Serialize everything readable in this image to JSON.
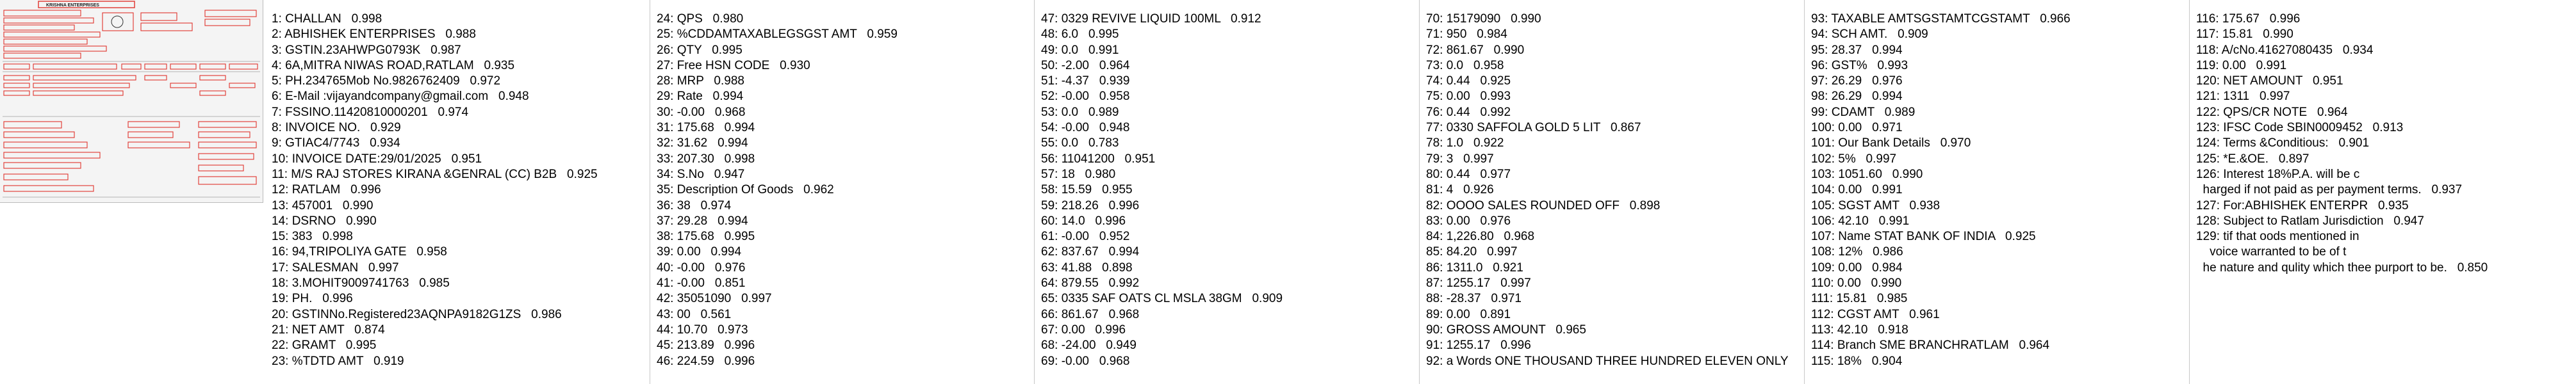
{
  "thumbnail": {
    "title": "KRISHNA ENTERPRISES",
    "colors": {
      "box": "#e0322c",
      "ink": "#1a1a1a",
      "paper": "#f7f7f7"
    }
  },
  "columns": [
    {
      "lines": [
        "1: CHALLAN   0.998",
        "2: ABHISHEK ENTERPRISES   0.988",
        "3: GSTIN.23AHWPG0793K   0.987",
        "4: 6A,MITRA NIWAS ROAD,RATLAM   0.935",
        "5: PH.234765Mob No.9826762409   0.972",
        "6: E-Mail :vijayandcompany@gmail.com   0.948",
        "7: FSSINO.11420810000201   0.974",
        "8: INVOICE NO.   0.929",
        "9: GTIAC4/7743   0.934",
        "10: INVOICE DATE:29/01/2025   0.951",
        "11: M/S RAJ STORES KIRANA &GENRAL (CC) B2B   0.925",
        "12: RATLAM   0.996",
        "13: 457001   0.990",
        "14: DSRNO   0.990",
        "15: 383   0.998",
        "16: 94,TRIPOLIYA GATE   0.958",
        "17: SALESMAN   0.997",
        "18: 3.MOHIT9009741763   0.985",
        "19: PH.   0.996",
        "20: GSTINNo.Registered23AQNPA9182G1ZS   0.986",
        "21: NET AMT   0.874",
        "22: GRAMT   0.995",
        "23: %TDTD AMT   0.919"
      ]
    },
    {
      "lines": [
        "24: QPS   0.980",
        "25: %CDDAMTAXABLEGSGST AMT   0.959",
        "26: QTY   0.995",
        "27: Free HSN CODE   0.930",
        "28: MRP   0.988",
        "29: Rate   0.994",
        "30: -0.00   0.968",
        "31: 175.68   0.994",
        "32: 31.62   0.994",
        "33: 207.30   0.998",
        "34: S.No   0.947",
        "35: Description Of Goods   0.962",
        "36: 38   0.974",
        "37: 29.28   0.994",
        "38: 175.68   0.995",
        "39: 0.00   0.994",
        "40: -0.00   0.976",
        "41: -0.00   0.851",
        "42: 35051090   0.997",
        "43: 00   0.561",
        "44: 10.70   0.973",
        "45: 213.89   0.996",
        "46: 224.59   0.996"
      ]
    },
    {
      "lines": [
        "47: 0329 REVIVE LIQUID 100ML   0.912",
        "48: 6.0   0.995",
        "49: 0.0   0.991",
        "50: -2.00   0.964",
        "51: -4.37   0.939",
        "52: -0.00   0.958",
        "53: 0.0   0.989",
        "54: -0.00   0.948",
        "55: 0.0   0.783",
        "56: 11041200   0.951",
        "57: 18   0.980",
        "58: 15.59   0.955",
        "59: 218.26   0.996",
        "60: 14.0   0.996",
        "61: -0.00   0.952",
        "62: 837.67   0.994",
        "63: 41.88   0.898",
        "64: 879.55   0.992",
        "65: 0335 SAF OATS CL MSLA 38GM   0.909",
        "66: 861.67   0.968",
        "67: 0.00   0.996",
        "68: -24.00   0.949",
        "69: -0.00   0.968"
      ]
    },
    {
      "lines": [
        "70: 15179090   0.990",
        "71: 950   0.984",
        "72: 861.67   0.990",
        "73: 0.0   0.958",
        "74: 0.44   0.925",
        "75: 0.00   0.993",
        "76: 0.44   0.992",
        "77: 0330 SAFFOLA GOLD 5 LIT   0.867",
        "78: 1.0   0.922",
        "79: 3   0.997",
        "80: 0.44   0.977",
        "81: 4   0.926",
        "82: OOOO SALES ROUNDED OFF   0.898",
        "83: 0.00   0.976",
        "84: 1,226.80   0.968",
        "85: 84.20   0.997",
        "86: 1311.0   0.921",
        "87: 1255.17   0.997",
        "88: -28.37   0.971",
        "89: 0.00   0.891",
        "90: GROSS AMOUNT   0.965",
        "91: 1255.17   0.996",
        "92: a Words ONE THOUSAND THREE HUNDRED ELEVEN ONLY"
      ]
    },
    {
      "lines": [
        "93: TAXABLE AMTSGSTAMTCGSTAMT   0.966",
        "94: SCH AMT.   0.909",
        "95: 28.37   0.994",
        "96: GST%   0.993",
        "97: 26.29   0.976",
        "98: 26.29   0.994",
        "99: CDAMT   0.989",
        "100: 0.00   0.971",
        "101: Our Bank Details   0.970",
        "102: 5%   0.997",
        "103: 1051.60   0.990",
        "104: 0.00   0.991",
        "105: SGST AMT   0.938",
        "106: 42.10   0.991",
        "107: Name STAT BANK OF INDIA   0.925",
        "108: 12%   0.986",
        "109: 0.00   0.984",
        "110: 0.00   0.990",
        "111: 15.81   0.985",
        "112: CGST AMT   0.961",
        "113: 42.10   0.918",
        "114: Branch SME BRANCHRATLAM   0.964",
        "115: 18%   0.904"
      ]
    },
    {
      "lines": [
        "116: 175.67   0.996",
        "117: 15.81   0.990",
        "118: A/cNo.41627080435   0.934",
        "119: 0.00   0.991",
        "120: NET AMOUNT   0.951",
        "121: 1311   0.997",
        "122: QPS/CR NOTE   0.964",
        "123: IFSC Code SBIN0009452   0.913",
        "124: Terms &Conditious:   0.901",
        "125: *E.&OE.   0.897",
        "126: Interest 18%P.A. will be c",
        "  harged if not paid as per payment terms.   0.937",
        "127: For:ABHISHEK ENTERPR   0.935",
        "128: Subject to Ratlam Jurisdiction   0.947",
        "129: tif that oods mentioned in",
        "    voice warranted to be of t",
        "  he nature and qulity which thee purport to be.   0.850"
      ]
    }
  ]
}
